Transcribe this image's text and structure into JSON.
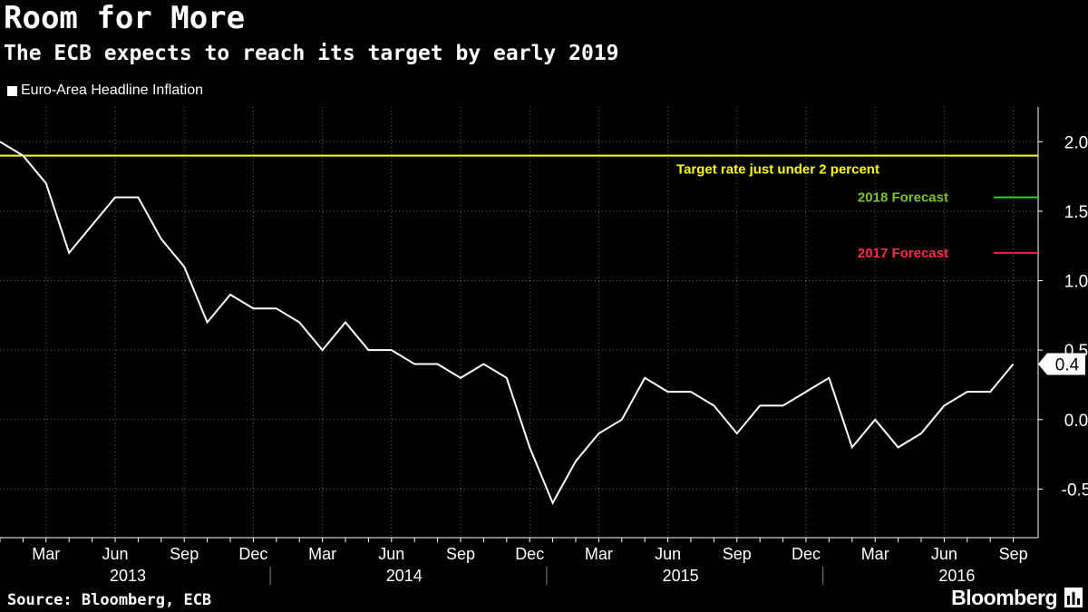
{
  "header": {
    "title": "Room for More",
    "subtitle": "The ECB expects to reach its target by early 2019"
  },
  "footer": {
    "source": "Source: Bloomberg, ECB",
    "brand": "Bloomberg"
  },
  "colors": {
    "background": "#000000",
    "series": "#ffffff",
    "target": "#ffff00",
    "forecast_2018": "#22dd22",
    "forecast_2017": "#ff2040",
    "forecast_2018_text": "#7cc22a",
    "forecast_2017_text": "#ff2a4a",
    "grid": "#6a6a6a"
  },
  "chart_data": {
    "type": "line",
    "title": "Room for More",
    "subtitle": "The ECB expects to reach its target by early 2019",
    "xlabel": "",
    "ylabel": "",
    "ylim": [
      -0.85,
      2.25
    ],
    "grid": true,
    "legend_position": "top-left",
    "x": [
      "2013-01",
      "2013-02",
      "2013-03",
      "2013-04",
      "2013-05",
      "2013-06",
      "2013-07",
      "2013-08",
      "2013-09",
      "2013-10",
      "2013-11",
      "2013-12",
      "2014-01",
      "2014-02",
      "2014-03",
      "2014-04",
      "2014-05",
      "2014-06",
      "2014-07",
      "2014-08",
      "2014-09",
      "2014-10",
      "2014-11",
      "2014-12",
      "2015-01",
      "2015-02",
      "2015-03",
      "2015-04",
      "2015-05",
      "2015-06",
      "2015-07",
      "2015-08",
      "2015-09",
      "2015-10",
      "2015-11",
      "2015-12",
      "2016-01",
      "2016-02",
      "2016-03",
      "2016-04",
      "2016-05",
      "2016-06",
      "2016-07",
      "2016-08",
      "2016-09"
    ],
    "series": [
      {
        "name": "Euro-Area Headline Inflation",
        "values": [
          2.0,
          1.9,
          1.7,
          1.2,
          1.4,
          1.6,
          1.6,
          1.3,
          1.1,
          0.7,
          0.9,
          0.8,
          0.8,
          0.7,
          0.5,
          0.7,
          0.5,
          0.5,
          0.4,
          0.4,
          0.3,
          0.4,
          0.3,
          -0.2,
          -0.6,
          -0.3,
          -0.1,
          0.0,
          0.3,
          0.2,
          0.2,
          0.1,
          -0.1,
          0.1,
          0.1,
          0.2,
          0.3,
          -0.2,
          0.0,
          -0.2,
          -0.1,
          0.1,
          0.2,
          0.2,
          0.4
        ]
      }
    ],
    "last_value_label": "0.4",
    "yticks": [
      "2.0",
      "1.5",
      "1.0",
      "0.5",
      "0.0",
      "-0.5"
    ],
    "ytick_values": [
      2.0,
      1.5,
      1.0,
      0.5,
      0.0,
      -0.5
    ],
    "month_ticks": [
      {
        "label": "Mar",
        "index": 2
      },
      {
        "label": "Jun",
        "index": 5
      },
      {
        "label": "Sep",
        "index": 8
      },
      {
        "label": "Dec",
        "index": 11
      },
      {
        "label": "Mar",
        "index": 14
      },
      {
        "label": "Jun",
        "index": 17
      },
      {
        "label": "Sep",
        "index": 20
      },
      {
        "label": "Dec",
        "index": 23
      },
      {
        "label": "Mar",
        "index": 26
      },
      {
        "label": "Jun",
        "index": 29
      },
      {
        "label": "Sep",
        "index": 32
      },
      {
        "label": "Dec",
        "index": 35
      },
      {
        "label": "Mar",
        "index": 38
      },
      {
        "label": "Jun",
        "index": 41
      },
      {
        "label": "Sep",
        "index": 44
      }
    ],
    "year_labels": [
      {
        "label": "2013",
        "index": 5
      },
      {
        "label": "2014",
        "index": 17
      },
      {
        "label": "2015",
        "index": 29
      },
      {
        "label": "2016",
        "index": 41
      }
    ],
    "reference_lines": [
      {
        "name": "target",
        "label": "Target rate just under 2 percent",
        "value": 1.9
      },
      {
        "name": "forecast-2018",
        "label": "2018 Forecast",
        "value": 1.6
      },
      {
        "name": "forecast-2017",
        "label": "2017 Forecast",
        "value": 1.2
      }
    ]
  }
}
